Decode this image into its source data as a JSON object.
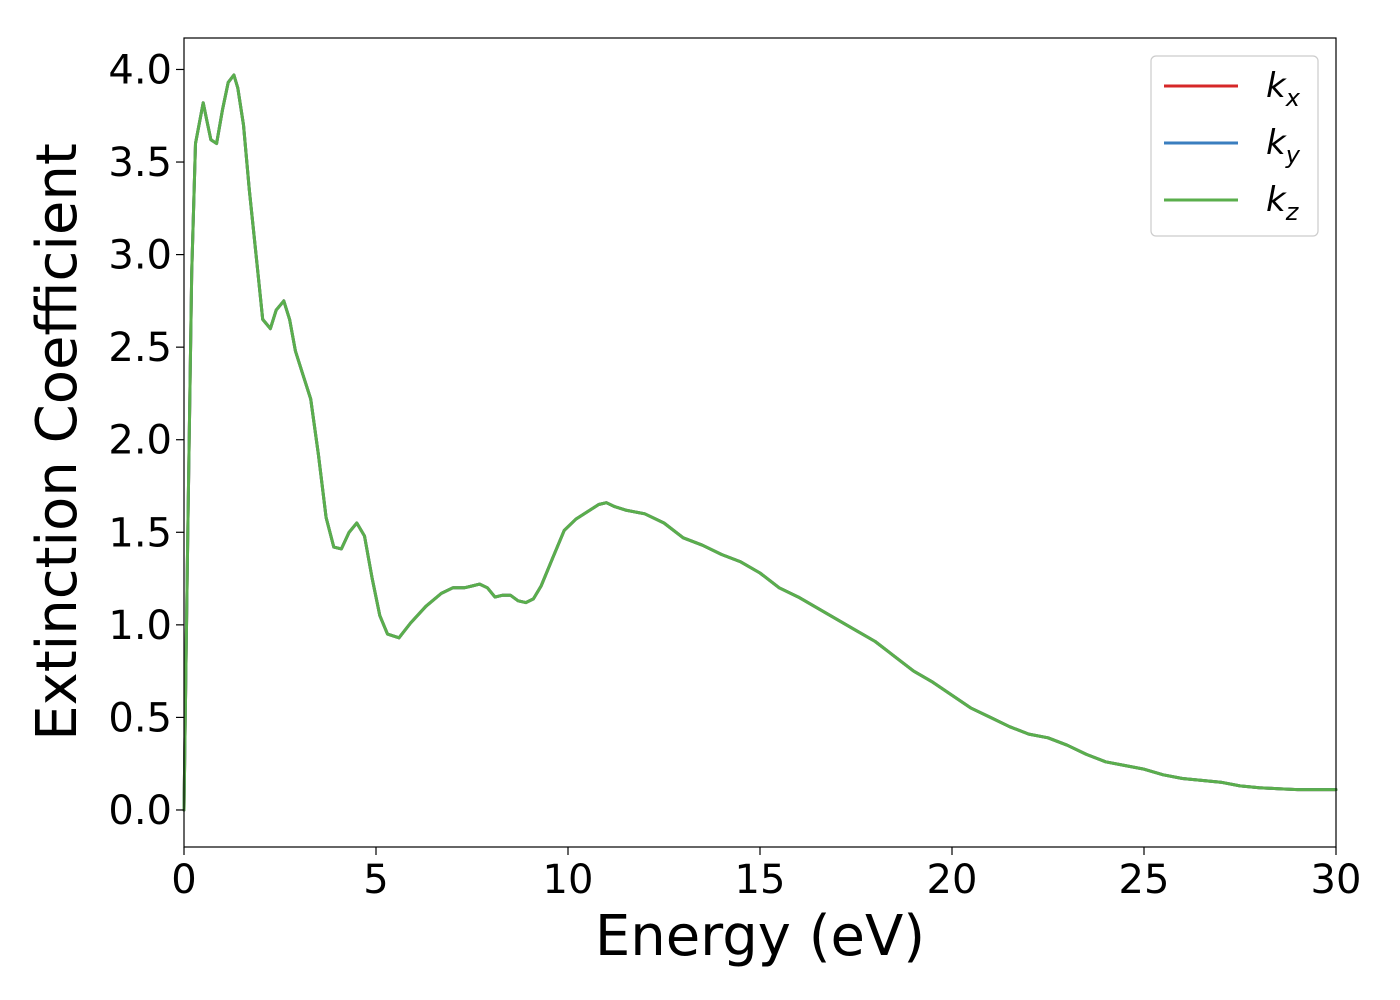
{
  "chart_data": {
    "type": "line",
    "title": "",
    "xlabel": "Energy (eV)",
    "ylabel": "Extinction Coefficient",
    "xlim": [
      0,
      30
    ],
    "ylim": [
      -0.2,
      4.17
    ],
    "xticks": [
      0,
      5,
      10,
      15,
      20,
      25,
      30
    ],
    "xtick_labels": [
      "0",
      "5",
      "10",
      "15",
      "20",
      "25",
      "30"
    ],
    "yticks": [
      0.0,
      0.5,
      1.0,
      1.5,
      2.0,
      2.5,
      3.0,
      3.5,
      4.0
    ],
    "ytick_labels": [
      "0.0",
      "0.5",
      "1.0",
      "1.5",
      "2.0",
      "2.5",
      "3.0",
      "3.5",
      "4.0"
    ],
    "grid": false,
    "legend_position": "top-right",
    "x": [
      0,
      0.1,
      0.2,
      0.3,
      0.5,
      0.6,
      0.7,
      0.85,
      1.0,
      1.15,
      1.3,
      1.4,
      1.55,
      1.7,
      1.9,
      2.05,
      2.25,
      2.4,
      2.6,
      2.75,
      2.9,
      3.1,
      3.3,
      3.5,
      3.7,
      3.9,
      4.1,
      4.3,
      4.5,
      4.7,
      4.9,
      5.1,
      5.3,
      5.6,
      5.9,
      6.3,
      6.7,
      7.0,
      7.3,
      7.5,
      7.7,
      7.9,
      8.1,
      8.3,
      8.5,
      8.7,
      8.9,
      9.1,
      9.3,
      9.6,
      9.9,
      10.2,
      10.5,
      10.8,
      11.0,
      11.2,
      11.5,
      12.0,
      12.5,
      13.0,
      13.5,
      14.0,
      14.5,
      15.0,
      15.5,
      16.0,
      16.5,
      17.0,
      17.5,
      18.0,
      18.5,
      19.0,
      19.5,
      20.0,
      20.5,
      21.0,
      21.5,
      22.0,
      22.5,
      23.0,
      23.5,
      24.0,
      24.5,
      25.0,
      25.5,
      26.0,
      26.5,
      27.0,
      27.5,
      28.0,
      28.5,
      29.0,
      29.5,
      30.0
    ],
    "colors": {
      "kx": "#d62728",
      "ky": "#3a7ebf",
      "kz": "#5aae4c"
    },
    "series": [
      {
        "name": "k_x",
        "label_base": "k",
        "label_sub": "x",
        "color": "#d62728",
        "shares_values_with": "k_z"
      },
      {
        "name": "k_y",
        "label_base": "k",
        "label_sub": "y",
        "color": "#3a7ebf",
        "shares_values_with": "k_z"
      },
      {
        "name": "k_z",
        "label_base": "k",
        "label_sub": "z",
        "color": "#5aae4c",
        "values": [
          0.0,
          1.5,
          2.9,
          3.6,
          3.82,
          3.72,
          3.62,
          3.6,
          3.78,
          3.93,
          3.97,
          3.9,
          3.7,
          3.35,
          2.95,
          2.65,
          2.6,
          2.7,
          2.75,
          2.65,
          2.48,
          2.35,
          2.22,
          1.92,
          1.58,
          1.42,
          1.41,
          1.5,
          1.55,
          1.48,
          1.25,
          1.05,
          0.95,
          0.93,
          1.01,
          1.1,
          1.17,
          1.2,
          1.2,
          1.21,
          1.22,
          1.2,
          1.15,
          1.16,
          1.16,
          1.13,
          1.12,
          1.14,
          1.21,
          1.36,
          1.51,
          1.57,
          1.61,
          1.65,
          1.66,
          1.64,
          1.62,
          1.6,
          1.55,
          1.47,
          1.43,
          1.38,
          1.34,
          1.28,
          1.2,
          1.15,
          1.09,
          1.03,
          0.97,
          0.91,
          0.83,
          0.75,
          0.69,
          0.62,
          0.55,
          0.5,
          0.45,
          0.41,
          0.39,
          0.35,
          0.3,
          0.26,
          0.24,
          0.22,
          0.19,
          0.17,
          0.16,
          0.15,
          0.13,
          0.12,
          0.115,
          0.11,
          0.11,
          0.11
        ]
      }
    ]
  }
}
